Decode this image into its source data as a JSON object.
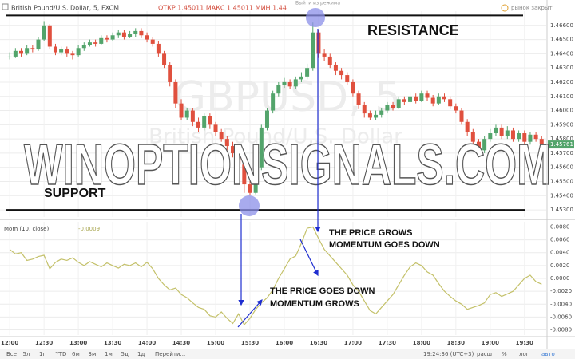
{
  "header": {
    "symbol": "British Pound/U.S. Dollar, 5, FXCM",
    "ohlc": "ОТКР 1.45011 МАКС 1.45011 МИН 1.44",
    "replay": "Выйти из режима",
    "market": "рынок закрыт",
    "indicator": "Mom (10, close)"
  },
  "watermark": {
    "ticker": "GBPUSD, 5",
    "name": "British Pound/U.S. Dollar",
    "site": "WINOPTIONSIGNALS.COM"
  },
  "annotations": {
    "resistance": "RESISTANCE",
    "support": "SUPPORT",
    "grows_1": "THE PRICE GROWS",
    "grows_2": "MOMENTUM GOES DOWN",
    "down_1": "THE PRICE GOES DOWN",
    "down_2": "MOMENTUM GROWS"
  },
  "toolbar": {
    "ranges": [
      "Все",
      "5л",
      "1г",
      "YTD",
      "6м",
      "3м",
      "1м",
      "5д",
      "1д",
      "Перейти..."
    ],
    "clock": "19:24:36 (UTC+3)",
    "options": [
      "расш",
      "%",
      "лог",
      "авто"
    ]
  },
  "chart_data": [
    {
      "type": "candlestick",
      "up_color": "#53a46b",
      "down_color": "#e0503e",
      "resistance_level": 1.4667,
      "support_level": 1.453,
      "grid": true,
      "xlim": [
        -1.7,
        93.8
      ],
      "ylim": [
        1.4525,
        1.467
      ],
      "yticks": [
        {
          "value": 1.466,
          "label": "1.46600"
        },
        {
          "value": 1.465,
          "label": "1.46500"
        },
        {
          "value": 1.464,
          "label": "1.46400"
        },
        {
          "value": 1.463,
          "label": "1.46300"
        },
        {
          "value": 1.462,
          "label": "1.46200"
        },
        {
          "value": 1.461,
          "label": "1.46100"
        },
        {
          "value": 1.46,
          "label": "1.46000"
        },
        {
          "value": 1.459,
          "label": "1.45900"
        },
        {
          "value": 1.458,
          "label": "1.45800"
        },
        {
          "value": 1.457,
          "label": "1.45700"
        },
        {
          "value": 1.456,
          "label": "1.45600"
        },
        {
          "value": 1.455,
          "label": "1.45500"
        },
        {
          "value": 1.454,
          "label": "1.45400"
        },
        {
          "value": 1.453,
          "label": "1.45300"
        }
      ],
      "close": [
        1.4638,
        1.4642,
        1.464,
        1.4644,
        1.4643,
        1.465,
        1.466,
        1.4645,
        1.4641,
        1.4643,
        1.464,
        1.4639,
        1.4644,
        1.4646,
        1.4648,
        1.4647,
        1.4651,
        1.465,
        1.4653,
        1.4655,
        1.4652,
        1.4654,
        1.4656,
        1.4653,
        1.465,
        1.4647,
        1.464,
        1.4632,
        1.462,
        1.4605,
        1.4595,
        1.46,
        1.4592,
        1.4588,
        1.4596,
        1.459,
        1.4585,
        1.458,
        1.4575,
        1.457,
        1.4562,
        1.4548,
        1.4542,
        1.456,
        1.4588,
        1.46,
        1.4612,
        1.4618,
        1.462,
        1.4617,
        1.4622,
        1.4624,
        1.463,
        1.4655,
        1.464,
        1.4638,
        1.4632,
        1.4628,
        1.4625,
        1.462,
        1.4612,
        1.4604,
        1.4598,
        1.4595,
        1.4597,
        1.46,
        1.4604,
        1.4602,
        1.4608,
        1.4606,
        1.461,
        1.4607,
        1.4612,
        1.4609,
        1.4605,
        1.461,
        1.4608,
        1.4603,
        1.46,
        1.4592,
        1.4585,
        1.4578,
        1.4572,
        1.458,
        1.4584,
        1.4588,
        1.4582,
        1.4586,
        1.458,
        1.4584,
        1.4578,
        1.4583,
        1.458,
        1.45761
      ],
      "high": [
        1.4641,
        1.4644,
        1.4644,
        1.4646,
        1.4646,
        1.4652,
        1.4663,
        1.4661,
        1.4647,
        1.4645,
        1.4645,
        1.4642,
        1.4646,
        1.4648,
        1.465,
        1.465,
        1.4653,
        1.4653,
        1.4655,
        1.4657,
        1.4657,
        1.4656,
        1.4658,
        1.4658,
        1.4655,
        1.4652,
        1.4649,
        1.4642,
        1.4634,
        1.4622,
        1.4608,
        1.4602,
        1.4602,
        1.4595,
        1.4598,
        1.4598,
        1.4592,
        1.4587,
        1.4582,
        1.4578,
        1.4572,
        1.4564,
        1.4555,
        1.4562,
        1.459,
        1.4602,
        1.4614,
        1.462,
        1.4623,
        1.4622,
        1.4624,
        1.4627,
        1.4633,
        1.4662,
        1.4657,
        1.4643,
        1.464,
        1.4634,
        1.463,
        1.4627,
        1.4622,
        1.4614,
        1.4606,
        1.46,
        1.46,
        1.4602,
        1.4606,
        1.4606,
        1.461,
        1.461,
        1.4613,
        1.4612,
        1.4614,
        1.4614,
        1.4611,
        1.4612,
        1.4612,
        1.461,
        1.4605,
        1.4602,
        1.4594,
        1.4587,
        1.458,
        1.4582,
        1.4587,
        1.459,
        1.459,
        1.4589,
        1.4588,
        1.4586,
        1.4586,
        1.4585,
        1.4585,
        1.4582
      ],
      "low": [
        1.4636,
        1.4637,
        1.4638,
        1.4639,
        1.4641,
        1.4642,
        1.4649,
        1.4643,
        1.4639,
        1.4639,
        1.4638,
        1.4636,
        1.4638,
        1.4642,
        1.4645,
        1.4645,
        1.4646,
        1.4648,
        1.4649,
        1.4651,
        1.465,
        1.4651,
        1.4652,
        1.4651,
        1.4648,
        1.4645,
        1.4638,
        1.463,
        1.4617,
        1.4602,
        1.4593,
        1.4593,
        1.4589,
        1.4585,
        1.4586,
        1.4587,
        1.4582,
        1.4578,
        1.4572,
        1.4567,
        1.4558,
        1.4542,
        1.454,
        1.4541,
        1.4558,
        1.4586,
        1.4598,
        1.461,
        1.4616,
        1.4615,
        1.4615,
        1.462,
        1.4622,
        1.4628,
        1.4637,
        1.4635,
        1.463,
        1.4625,
        1.4622,
        1.4618,
        1.461,
        1.4601,
        1.4595,
        1.4593,
        1.4593,
        1.4595,
        1.4598,
        1.46,
        1.4601,
        1.4604,
        1.4605,
        1.4605,
        1.4606,
        1.4607,
        1.4603,
        1.4604,
        1.4606,
        1.4601,
        1.4598,
        1.459,
        1.4582,
        1.4575,
        1.457,
        1.457,
        1.4578,
        1.4582,
        1.458,
        1.458,
        1.4578,
        1.4578,
        1.4576,
        1.4576,
        1.4578,
        1.4574
      ]
    },
    {
      "type": "line",
      "color": "#c4c16a",
      "grid": true,
      "xlim": [
        -1.7,
        93.8
      ],
      "ylim": [
        -0.0088,
        0.0088
      ],
      "xticks": [
        {
          "value": 0,
          "label": "12:00"
        },
        {
          "value": 6,
          "label": "12:30"
        },
        {
          "value": 12,
          "label": "13:00"
        },
        {
          "value": 18,
          "label": "13:30"
        },
        {
          "value": 24,
          "label": "14:00"
        },
        {
          "value": 30,
          "label": "14:30"
        },
        {
          "value": 36,
          "label": "15:00"
        },
        {
          "value": 42,
          "label": "15:30"
        },
        {
          "value": 48,
          "label": "16:00"
        },
        {
          "value": 54,
          "label": "16:30"
        },
        {
          "value": 60,
          "label": "17:00"
        },
        {
          "value": 66,
          "label": "17:30"
        },
        {
          "value": 72,
          "label": "18:00"
        },
        {
          "value": 78,
          "label": "18:30"
        },
        {
          "value": 84,
          "label": "19:00"
        },
        {
          "value": 90,
          "label": "19:30"
        }
      ],
      "yticks": [
        {
          "value": 0.008,
          "label": "0.0080"
        },
        {
          "value": 0.006,
          "label": "0.0060"
        },
        {
          "value": 0.004,
          "label": "0.0040"
        },
        {
          "value": 0.002,
          "label": "0.0020"
        },
        {
          "value": 0,
          "label": "0.0000"
        },
        {
          "value": -0.002,
          "label": "-0.0020"
        },
        {
          "value": -0.004,
          "label": "-0.0040"
        },
        {
          "value": -0.006,
          "label": "-0.0060"
        },
        {
          "value": -0.008,
          "label": "-0.0080"
        }
      ],
      "values": [
        0.0045,
        0.0038,
        0.004,
        0.0028,
        0.003,
        0.0034,
        0.0036,
        0.0015,
        0.0025,
        0.003,
        0.0028,
        0.0032,
        0.0025,
        0.002,
        0.0026,
        0.0022,
        0.0018,
        0.0024,
        0.002,
        0.0016,
        0.0022,
        0.002,
        0.0024,
        0.0018,
        0.0025,
        0.0015,
        0,
        -0.001,
        -0.0018,
        -0.0015,
        -0.0025,
        -0.003,
        -0.0038,
        -0.0045,
        -0.0048,
        -0.0058,
        -0.006,
        -0.0052,
        -0.0062,
        -0.007,
        -0.0055,
        -0.0072,
        -0.0062,
        -0.0048,
        -0.0038,
        -0.003,
        -0.0018,
        0,
        0.0015,
        0.003,
        0.0035,
        0.0055,
        0.0078,
        0.008,
        0.0062,
        0.0045,
        0.0035,
        0.0025,
        0.0015,
        0.0005,
        -0.001,
        -0.002,
        -0.0035,
        -0.005,
        -0.0055,
        -0.0045,
        -0.0035,
        -0.0025,
        -0.001,
        0.0005,
        0.0018,
        0.0024,
        0.002,
        0.001,
        0.0005,
        -0.0008,
        -0.002,
        -0.0028,
        -0.0035,
        -0.004,
        -0.0048,
        -0.0045,
        -0.0042,
        -0.0038,
        -0.0025,
        -0.0022,
        -0.0028,
        -0.0024,
        -0.002,
        -0.001,
        0,
        0.0005,
        -0.0005,
        -0.0009
      ]
    }
  ]
}
